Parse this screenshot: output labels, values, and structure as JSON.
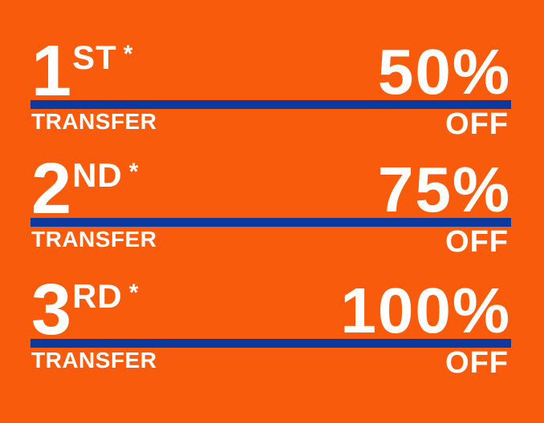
{
  "colors": {
    "background": "#F95B0C",
    "divider_line": "#0A3A9E",
    "text": "#FFFFFF"
  },
  "rows": [
    {
      "number": "1",
      "suffix": "ST",
      "asterisk": "*",
      "label": "TRANSFER",
      "percent": "50%",
      "off": "OFF"
    },
    {
      "number": "2",
      "suffix": "ND",
      "asterisk": "*",
      "label": "TRANSFER",
      "percent": "75%",
      "off": "OFF"
    },
    {
      "number": "3",
      "suffix": "RD",
      "asterisk": "*",
      "label": "TRANSFER",
      "percent": "100%",
      "off": "OFF"
    }
  ]
}
